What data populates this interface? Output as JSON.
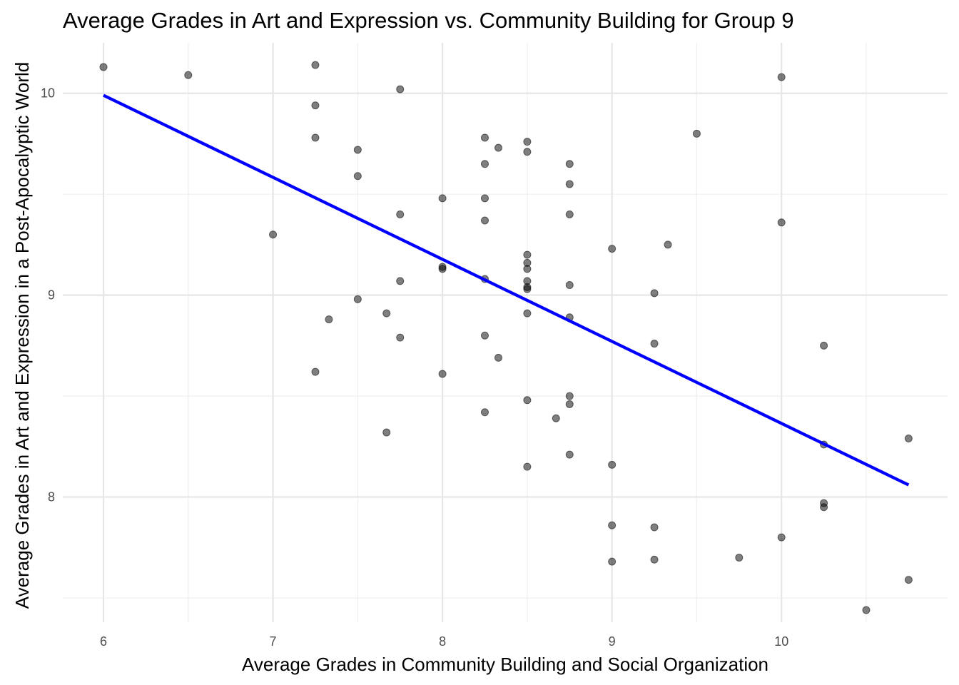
{
  "chart_data": {
    "type": "scatter",
    "title": "Average Grades in Art and Expression vs. Community Building for Group 9",
    "xlabel": "Average Grades in Community Building and Social Organization",
    "ylabel": "Average Grades in Art and Expression in a Post-Apocalyptic World",
    "xlim": [
      5.76,
      10.98
    ],
    "ylim": [
      7.38,
      10.25
    ],
    "x_ticks": [
      6,
      7,
      8,
      9,
      10
    ],
    "y_ticks": [
      8,
      9,
      10
    ],
    "x_tick_labels": [
      "6",
      "7",
      "8",
      "9",
      "10"
    ],
    "y_tick_labels": [
      "8",
      "9",
      "10"
    ],
    "grid": true,
    "point_color": "#000000",
    "point_opacity": 0.5,
    "trend_color": "#0000ff",
    "trend_line": {
      "x": [
        6.0,
        10.75
      ],
      "y": [
        9.99,
        8.06
      ]
    },
    "points": [
      [
        6.0,
        10.13
      ],
      [
        6.5,
        10.09
      ],
      [
        7.0,
        9.3
      ],
      [
        7.25,
        10.14
      ],
      [
        7.25,
        9.94
      ],
      [
        7.25,
        9.78
      ],
      [
        7.25,
        8.62
      ],
      [
        7.33,
        8.88
      ],
      [
        7.5,
        9.72
      ],
      [
        7.5,
        9.59
      ],
      [
        7.5,
        8.98
      ],
      [
        7.67,
        8.91
      ],
      [
        7.67,
        8.32
      ],
      [
        7.75,
        10.02
      ],
      [
        7.75,
        9.4
      ],
      [
        7.75,
        9.07
      ],
      [
        7.75,
        8.79
      ],
      [
        8.0,
        9.48
      ],
      [
        8.0,
        9.14
      ],
      [
        8.0,
        9.13
      ],
      [
        8.0,
        8.61
      ],
      [
        8.25,
        9.78
      ],
      [
        8.25,
        9.65
      ],
      [
        8.25,
        9.48
      ],
      [
        8.25,
        9.37
      ],
      [
        8.25,
        9.08
      ],
      [
        8.25,
        8.8
      ],
      [
        8.25,
        8.42
      ],
      [
        8.33,
        9.73
      ],
      [
        8.33,
        8.69
      ],
      [
        8.5,
        9.76
      ],
      [
        8.5,
        9.71
      ],
      [
        8.5,
        9.2
      ],
      [
        8.5,
        9.16
      ],
      [
        8.5,
        9.13
      ],
      [
        8.5,
        9.07
      ],
      [
        8.5,
        9.04
      ],
      [
        8.5,
        9.03
      ],
      [
        8.5,
        8.91
      ],
      [
        8.5,
        8.48
      ],
      [
        8.5,
        8.15
      ],
      [
        8.67,
        8.39
      ],
      [
        8.75,
        9.65
      ],
      [
        8.75,
        9.55
      ],
      [
        8.75,
        9.4
      ],
      [
        8.75,
        9.05
      ],
      [
        8.75,
        8.89
      ],
      [
        8.75,
        8.5
      ],
      [
        8.75,
        8.46
      ],
      [
        8.75,
        8.21
      ],
      [
        9.0,
        9.23
      ],
      [
        9.0,
        8.16
      ],
      [
        9.0,
        7.86
      ],
      [
        9.0,
        7.68
      ],
      [
        9.25,
        9.01
      ],
      [
        9.25,
        8.76
      ],
      [
        9.25,
        7.85
      ],
      [
        9.25,
        7.69
      ],
      [
        9.33,
        9.25
      ],
      [
        9.5,
        9.8
      ],
      [
        9.75,
        7.7
      ],
      [
        10.0,
        10.08
      ],
      [
        10.0,
        9.36
      ],
      [
        10.0,
        7.8
      ],
      [
        10.25,
        8.75
      ],
      [
        10.25,
        8.26
      ],
      [
        10.25,
        7.97
      ],
      [
        10.25,
        7.95
      ],
      [
        10.5,
        7.44
      ],
      [
        10.75,
        8.29
      ],
      [
        10.75,
        7.59
      ]
    ]
  }
}
